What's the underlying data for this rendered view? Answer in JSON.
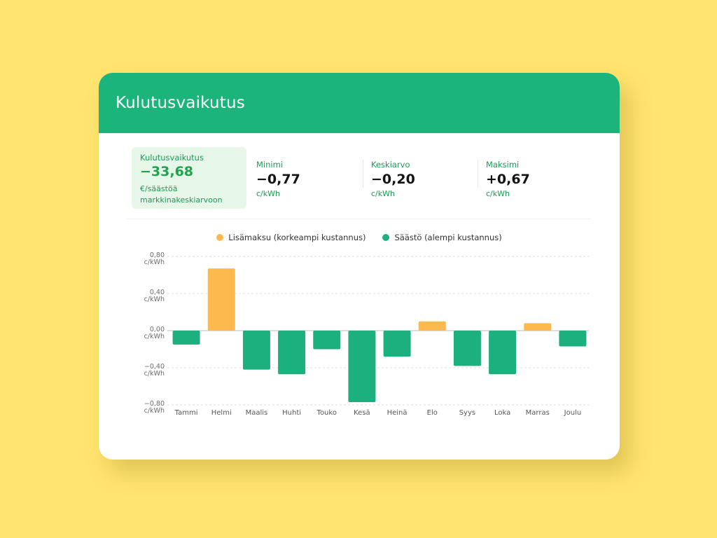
{
  "card": {
    "title": "Kulutusvaikutus"
  },
  "stats": {
    "highlight": {
      "label": "Kulutusvaikutus",
      "value": "−33,68",
      "unit": "€/säästöä markkinakeskiarvoon"
    },
    "items": [
      {
        "label": "Minimi",
        "value": "−0,77",
        "unit": "c/kWh"
      },
      {
        "label": "Keskiarvo",
        "value": "−0,20",
        "unit": "c/kWh"
      },
      {
        "label": "Maksimi",
        "value": "+0,67",
        "unit": "c/kWh"
      }
    ]
  },
  "colors": {
    "header": "#1BB57B",
    "positive": "#FBB94E",
    "negative": "#1DB07F",
    "background": "#FFE46F"
  },
  "chart_data": {
    "type": "bar",
    "legend": [
      {
        "name": "Lisämaksu (korkeampi kustannus)",
        "color": "#FBB94E"
      },
      {
        "name": "Säästö (alempi kustannus)",
        "color": "#1DB07F"
      }
    ],
    "legend_position": "top-center",
    "categories": [
      "Tammi",
      "Helmi",
      "Maalis",
      "Huhti",
      "Touko",
      "Kesä",
      "Heinä",
      "Elo",
      "Syys",
      "Loka",
      "Marras",
      "Joulu"
    ],
    "values": [
      -0.15,
      0.67,
      -0.42,
      -0.47,
      -0.2,
      -0.77,
      -0.28,
      0.1,
      -0.38,
      -0.47,
      0.08,
      -0.17
    ],
    "yticks": [
      {
        "value": 0.8,
        "label": "0,80",
        "unit": "c/kWh"
      },
      {
        "value": 0.4,
        "label": "0,40",
        "unit": "c/kWh"
      },
      {
        "value": 0.0,
        "label": "0,00",
        "unit": "c/kWh"
      },
      {
        "value": -0.4,
        "label": "−0,40",
        "unit": "c/kWh"
      },
      {
        "value": -0.8,
        "label": "−0,80",
        "unit": "c/kWh"
      }
    ],
    "ylim": [
      -0.8,
      0.8
    ],
    "grid": true
  }
}
